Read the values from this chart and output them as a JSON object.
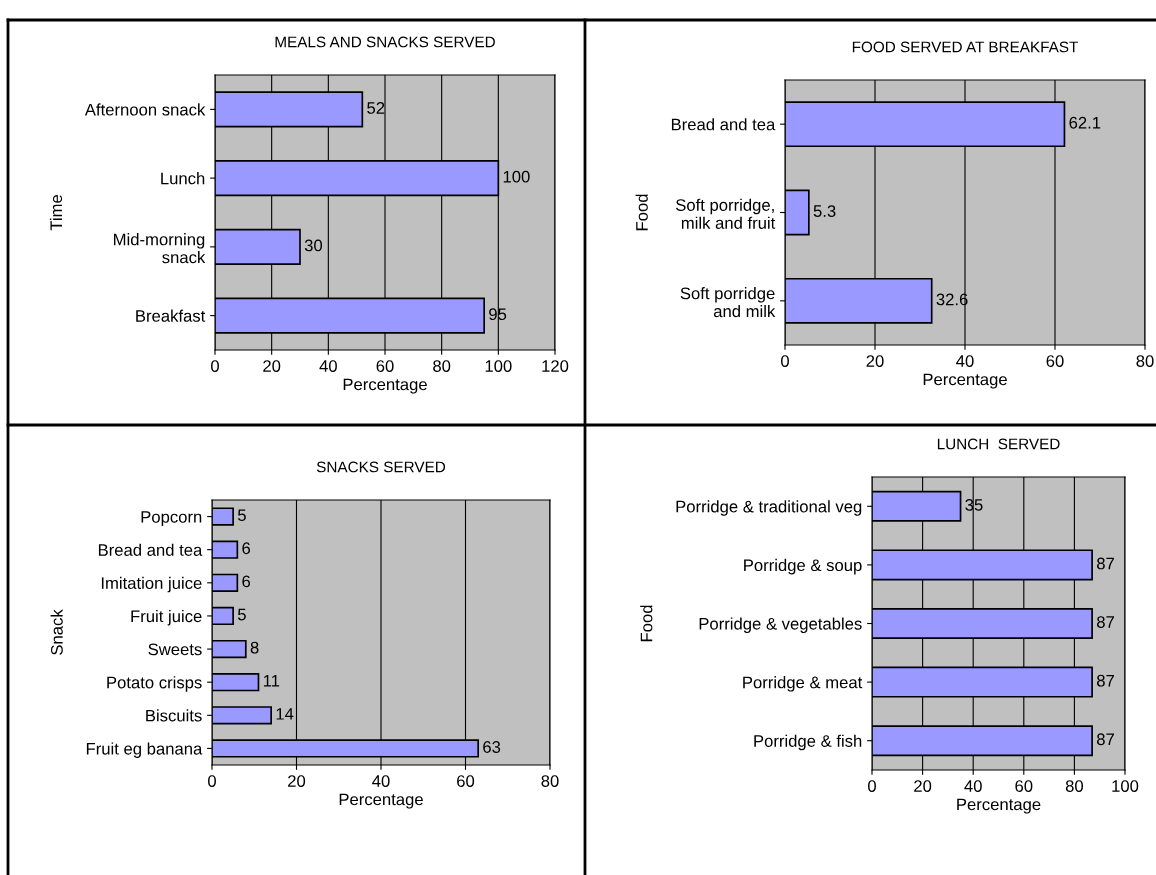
{
  "chart_data": [
    {
      "type": "bar",
      "orientation": "horizontal",
      "title": "MEALS AND SNACKS SERVED",
      "xlabel": "Percentage",
      "ylabel": "Time",
      "categories": [
        "Afternoon snack",
        "Lunch",
        "Mid-morning\nsnack",
        "Breakfast"
      ],
      "values": [
        52,
        100,
        30,
        95
      ],
      "color": "#9999ff",
      "xlim": [
        0,
        120
      ],
      "xticks": [
        0,
        20,
        40,
        60,
        80,
        100,
        120
      ],
      "grid": "x",
      "data_labels": true
    },
    {
      "type": "bar",
      "orientation": "horizontal",
      "title": "FOOD SERVED AT BREAKFAST",
      "xlabel": "Percentage",
      "ylabel": "Food",
      "categories": [
        "Bread and tea",
        "Soft porridge,\nmilk and fruit",
        "Soft porridge\nand milk"
      ],
      "values": [
        62.1,
        5.3,
        32.6
      ],
      "color": "#9999ff",
      "xlim": [
        0,
        80
      ],
      "xticks": [
        0,
        20,
        40,
        60,
        80
      ],
      "grid": "x",
      "data_labels": true
    },
    {
      "type": "bar",
      "orientation": "horizontal",
      "title": "SNACKS SERVED",
      "xlabel": "Percentage",
      "ylabel": "Snack",
      "categories": [
        "Popcorn",
        "Bread and tea",
        "Imitation juice",
        "Fruit juice",
        "Sweets",
        "Potato crisps",
        "Biscuits",
        "Fruit eg banana"
      ],
      "values": [
        5,
        6,
        6,
        5,
        8,
        11,
        14,
        63
      ],
      "color": "#9999ff",
      "xlim": [
        0,
        80
      ],
      "xticks": [
        0,
        20,
        40,
        60,
        80
      ],
      "grid": "x",
      "data_labels": true
    },
    {
      "type": "bar",
      "orientation": "horizontal",
      "title": "LUNCH  SERVED",
      "xlabel": "Percentage",
      "ylabel": "Food",
      "categories": [
        "Porridge & traditional veg",
        "Porridge & soup",
        "Porridge & vegetables",
        "Porridge & meat",
        "Porridge & fish"
      ],
      "values": [
        35,
        87,
        87,
        87,
        87
      ],
      "color": "#9999ff",
      "xlim": [
        0,
        100
      ],
      "xticks": [
        0,
        20,
        40,
        60,
        80,
        100
      ],
      "grid": "x",
      "data_labels": true
    }
  ]
}
